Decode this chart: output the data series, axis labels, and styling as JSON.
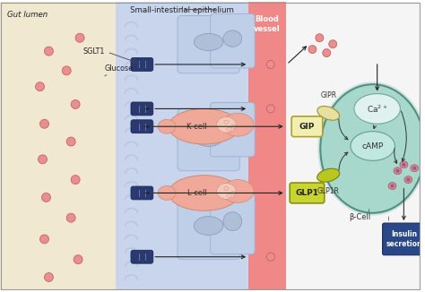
{
  "bg_lumen_color": "#f0e8d0",
  "bg_epithelium_color": "#c8d5ec",
  "bg_vessel_color": "#f08888",
  "right_bg_color": "#f5f5f5",
  "epi_cell_color": "#c0cfe8",
  "epi_cell_border": "#a0b5d5",
  "epi_nuc_color": "#b0bfd8",
  "epi_nuc_border": "#9090c0",
  "k_cell_color": "#f0a898",
  "k_cell_border": "#d08878",
  "k_nuc_color": "#f5c8b8",
  "k_nuc_border": "#d09888",
  "transporter_color": "#2a3a70",
  "transporter_lines": "#6878a8",
  "glucose_color": "#e89090",
  "glucose_border": "#c86060",
  "gip_box_color": "#f0eeb0",
  "gip_box_border": "#b0a030",
  "glp1_box_color": "#c8d430",
  "glp1_box_border": "#88900a",
  "beta_cell_outer": "#90cdc0",
  "beta_cell_inner": "#a8d8cc",
  "beta_cell_border": "#509080",
  "ca_color": "#e0f2ee",
  "ca_border": "#70a898",
  "camp_color": "#c0e8e0",
  "camp_border": "#60a090",
  "gipr_color": "#e8e0a0",
  "gipr_border": "#a09030",
  "glp1r_color": "#b8c820",
  "glp1r_border": "#788010",
  "insulin_box_color": "#2a4888",
  "insulin_text_color": "#ffffff",
  "secretory_color": "#cc8898",
  "secretory_border": "#aa5570",
  "arrow_color": "#222222",
  "text_color": "#222222",
  "villus_fold_color": "#b8c8e0",
  "villus_fold_border": "#90a8c8",
  "lumen_label": "Gut lumen",
  "epi_label": "Small-intestinal epithelium",
  "vessel_label": "Blood\nvessel",
  "sglt1_label": "SGLT1",
  "glucose_label": "Glucose",
  "k_cell_label": "K cell",
  "l_cell_label": "L cell",
  "gipr_label": "GIPR",
  "glp1r_label": "GLP1R",
  "beta_label": "β-Cell",
  "ca_label": "Ca²⁺",
  "camp_label": "cAMP",
  "insulin_label": "Insulin\nsecretion"
}
